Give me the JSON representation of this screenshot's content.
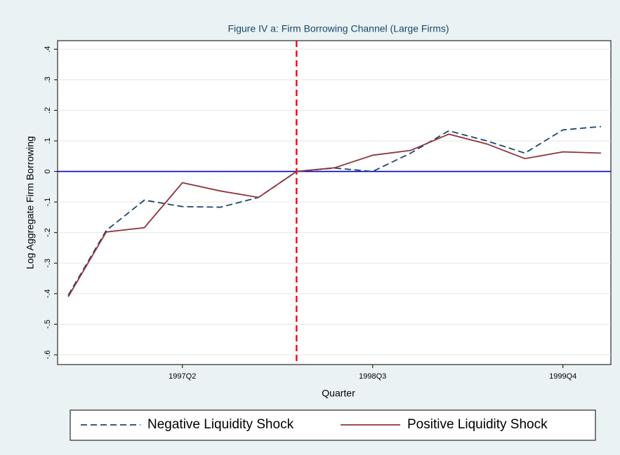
{
  "chart_data": {
    "type": "line",
    "title": "Figure IV a: Firm Borrowing Channel (Large Firms)",
    "x_label": "Quarter",
    "y_label": "Log Aggregate Firm Borrowing",
    "x": [
      146,
      147,
      148,
      149,
      150,
      151,
      152,
      153,
      154,
      155,
      156,
      157,
      158,
      159,
      160
    ],
    "xlim": [
      145.72,
      160.26
    ],
    "xticks": [
      {
        "value": 149,
        "label": "1997Q2"
      },
      {
        "value": 154,
        "label": "1998Q3"
      },
      {
        "value": 159,
        "label": "1999Q4"
      }
    ],
    "ylim": [
      -0.632,
      0.428
    ],
    "yticks": [
      {
        "value": -0.6,
        "label": "-.6"
      },
      {
        "value": -0.5,
        "label": "-.5"
      },
      {
        "value": -0.4,
        "label": "-.4"
      },
      {
        "value": -0.3,
        "label": "-.3"
      },
      {
        "value": -0.2,
        "label": "-.2"
      },
      {
        "value": -0.1,
        "label": "-.1"
      },
      0,
      {
        "value": 0.1,
        "label": ".1"
      },
      {
        "value": 0.2,
        "label": ".2"
      },
      {
        "value": 0.3,
        "label": ".3"
      },
      {
        "value": 0.4,
        "label": ".4"
      }
    ],
    "grid": true,
    "xline": {
      "value": 152,
      "color": "#e8141e"
    },
    "yline": {
      "value": 0,
      "color": "#0000c8"
    },
    "series": [
      {
        "name": "Negative Liquidity Shock",
        "color": "#1a476f",
        "dash": true,
        "values": [
          -0.405,
          -0.193,
          -0.094,
          -0.115,
          -0.117,
          -0.085,
          0,
          0.011,
          0.0,
          0.06,
          0.133,
          0.1,
          0.06,
          0.136,
          0.147
        ]
      },
      {
        "name": "Positive Liquidity Shock",
        "color": "#90353b",
        "dash": false,
        "values": [
          -0.41,
          -0.198,
          -0.184,
          -0.037,
          -0.064,
          -0.085,
          0,
          0.012,
          0.053,
          0.069,
          0.122,
          0.09,
          0.042,
          0.064,
          0.06
        ]
      }
    ]
  }
}
